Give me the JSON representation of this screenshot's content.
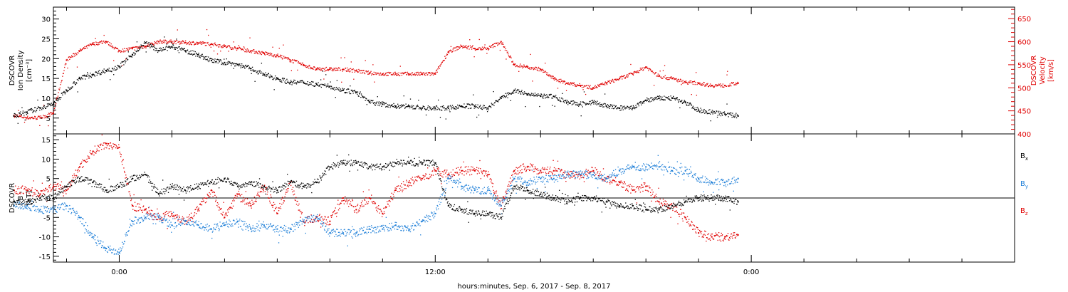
{
  "chart_data": [
    {
      "type": "scatter",
      "panel": "top",
      "left_axis_label": [
        "DSCOVR",
        "Ion Density",
        "[cm⁻³]"
      ],
      "right_axis_label": [
        "DSCOVR",
        "Velocity",
        "[km/s]"
      ],
      "left_ylim": [
        1,
        33
      ],
      "right_ylim": [
        400,
        675
      ],
      "left_ticks": [
        5,
        10,
        15,
        20,
        25,
        30
      ],
      "left_tick_labels": [
        "5",
        "10",
        "15",
        "20",
        "25",
        "30"
      ],
      "right_ticks": [
        400,
        450,
        500,
        550,
        600,
        650
      ],
      "right_tick_labels": [
        "400",
        "450",
        "500",
        "550",
        "600",
        "650"
      ],
      "colors": {
        "density": "#000000",
        "velocity": "#e00000"
      },
      "series": [
        {
          "key": "density",
          "axis": "left",
          "x": [
            -4.0,
            -3.5,
            -3.0,
            -2.5,
            -2.0,
            -1.5,
            -1.0,
            -0.5,
            0.0,
            0.5,
            1.0,
            1.5,
            2.0,
            2.5,
            3.0,
            3.5,
            4.0,
            4.5,
            5.0,
            5.5,
            6.0,
            6.5,
            7.0,
            7.5,
            8.0,
            8.5,
            9.0,
            9.5,
            10.0,
            10.5,
            11.0,
            11.5,
            12.0,
            12.5,
            13.0,
            13.5,
            14.0,
            14.5,
            15.0,
            15.5,
            16.0,
            16.5,
            17.0,
            17.5,
            18.0,
            18.5,
            19.0,
            19.5,
            20.0,
            20.5,
            21.0,
            21.5,
            22.0,
            22.5,
            23.0,
            23.5
          ],
          "y": [
            5.5,
            6.5,
            7.5,
            8.5,
            12,
            15,
            16,
            17,
            18,
            21,
            24,
            22,
            23,
            22,
            21,
            19.5,
            19,
            18.5,
            17.5,
            16,
            15,
            14,
            14,
            13.5,
            13,
            12,
            11.5,
            9,
            8.5,
            8,
            8,
            7.5,
            7.5,
            7.5,
            8,
            8,
            7.5,
            10,
            12,
            11,
            10.5,
            10.5,
            9,
            8.5,
            9,
            8,
            7.5,
            7.5,
            9.5,
            10,
            10,
            9,
            7,
            6.5,
            6,
            5.5
          ]
        },
        {
          "key": "velocity",
          "axis": "right",
          "x": [
            -4.0,
            -3.5,
            -3.0,
            -2.5,
            -2.0,
            -1.5,
            -1.0,
            -0.5,
            0.0,
            0.5,
            1.0,
            1.5,
            2.0,
            2.5,
            3.0,
            3.5,
            4.0,
            4.5,
            5.0,
            5.5,
            6.0,
            6.5,
            7.0,
            7.5,
            8.0,
            8.5,
            9.0,
            9.5,
            10.0,
            10.5,
            11.0,
            11.5,
            12.0,
            12.5,
            13.0,
            13.5,
            14.0,
            14.5,
            15.0,
            15.5,
            16.0,
            16.5,
            17.0,
            17.5,
            18.0,
            18.5,
            19.0,
            19.5,
            20.0,
            20.5,
            21.0,
            21.5,
            22.0,
            22.5,
            23.0,
            23.5
          ],
          "y": [
            440,
            435,
            435,
            445,
            560,
            580,
            595,
            600,
            580,
            585,
            590,
            600,
            600,
            598,
            597,
            595,
            590,
            585,
            580,
            575,
            570,
            560,
            550,
            540,
            540,
            540,
            537,
            532,
            530,
            530,
            530,
            530,
            530,
            578,
            590,
            585,
            585,
            600,
            550,
            545,
            540,
            520,
            510,
            505,
            500,
            510,
            520,
            530,
            545,
            525,
            520,
            512,
            510,
            505,
            505,
            510
          ]
        }
      ]
    },
    {
      "type": "scatter",
      "panel": "bottom",
      "left_axis_label": [
        "DSCOVR",
        "B",
        "[nT]"
      ],
      "ylim": [
        -16.5,
        16.5
      ],
      "ticks": [
        -15,
        -10,
        -5,
        0,
        5,
        10,
        15
      ],
      "tick_labels": [
        "-15",
        "-10",
        "-5",
        "0",
        "5",
        "10",
        "15"
      ],
      "legend": [
        {
          "text": "B",
          "sub": "x"
        },
        {
          "text": "B",
          "sub": "y"
        },
        {
          "text": "B",
          "sub": "z"
        }
      ],
      "colors": {
        "bx": "#000000",
        "by": "#1e7fd8",
        "bz": "#e00000"
      },
      "series": [
        {
          "key": "bx",
          "x": [
            -4.0,
            -3.5,
            -3.0,
            -2.5,
            -2.0,
            -1.5,
            -1.0,
            -0.5,
            0.0,
            0.5,
            1.0,
            1.5,
            2.0,
            2.5,
            3.0,
            3.5,
            4.0,
            4.5,
            5.0,
            5.5,
            6.0,
            6.5,
            7.0,
            7.5,
            8.0,
            8.5,
            9.0,
            9.5,
            10.0,
            10.5,
            11.0,
            11.5,
            12.0,
            12.5,
            13.0,
            13.5,
            14.0,
            14.5,
            15.0,
            15.5,
            16.0,
            16.5,
            17.0,
            17.5,
            18.0,
            18.5,
            19.0,
            19.5,
            20.0,
            20.5,
            21.0,
            21.5,
            22.0,
            22.5,
            23.0,
            23.5
          ],
          "y": [
            -1,
            -1,
            0,
            0,
            3,
            5,
            4,
            2,
            3,
            5,
            6,
            1,
            3,
            2,
            3,
            4,
            5,
            3,
            4,
            3,
            2,
            4,
            3,
            4,
            8,
            9,
            9,
            8,
            8,
            9,
            9,
            9,
            9,
            -2,
            -3,
            -4,
            -4,
            -5,
            3,
            2,
            1,
            0,
            -1,
            0,
            0,
            -1,
            -2,
            -2,
            -3,
            -3,
            -2,
            -1,
            0,
            0,
            0,
            -1
          ]
        },
        {
          "key": "by",
          "x": [
            -4.0,
            -3.5,
            -3.0,
            -2.5,
            -2.0,
            -1.5,
            -1.0,
            -0.5,
            0.0,
            0.5,
            1.0,
            1.5,
            2.0,
            2.5,
            3.0,
            3.5,
            4.0,
            4.5,
            5.0,
            5.5,
            6.0,
            6.5,
            7.0,
            7.5,
            8.0,
            8.5,
            9.0,
            9.5,
            10.0,
            10.5,
            11.0,
            11.5,
            12.0,
            12.5,
            13.0,
            13.5,
            14.0,
            14.5,
            15.0,
            15.5,
            16.0,
            16.5,
            17.0,
            17.5,
            18.0,
            18.5,
            19.0,
            19.5,
            20.0,
            20.5,
            21.0,
            21.5,
            22.0,
            22.5,
            23.0,
            23.5
          ],
          "y": [
            -2,
            -2,
            -3,
            -3,
            -2,
            -5,
            -10,
            -13,
            -14,
            -6,
            -5,
            -5,
            -7,
            -6,
            -7,
            -8,
            -7,
            -6,
            -8,
            -7,
            -8,
            -8,
            -6,
            -5,
            -9,
            -9,
            -9,
            -8,
            -8,
            -7,
            -8,
            -6,
            -4,
            5,
            3,
            2,
            2,
            -2,
            5,
            4,
            5,
            5,
            6,
            6,
            6,
            5,
            7,
            8,
            8,
            8,
            7,
            7,
            5,
            4,
            4,
            5
          ]
        },
        {
          "key": "bz",
          "x": [
            -4.0,
            -3.5,
            -3.0,
            -2.5,
            -2.0,
            -1.5,
            -1.0,
            -0.5,
            0.0,
            0.5,
            1.0,
            1.5,
            2.0,
            2.5,
            3.0,
            3.5,
            4.0,
            4.5,
            5.0,
            5.5,
            6.0,
            6.5,
            7.0,
            7.5,
            8.0,
            8.5,
            9.0,
            9.5,
            10.0,
            10.5,
            11.0,
            11.5,
            12.0,
            12.5,
            13.0,
            13.5,
            14.0,
            14.5,
            15.0,
            15.5,
            16.0,
            16.5,
            17.0,
            17.5,
            18.0,
            18.5,
            19.0,
            19.5,
            20.0,
            20.5,
            21.0,
            21.5,
            22.0,
            22.5,
            23.0,
            23.5
          ],
          "y": [
            2,
            2,
            1,
            3,
            2,
            8,
            12,
            14,
            13,
            -2,
            -3,
            -5,
            -4,
            -6,
            -3,
            2,
            -5,
            1,
            -2,
            3,
            -4,
            4,
            -6,
            -5,
            -6,
            0,
            -3,
            0,
            -4,
            2,
            4,
            5,
            7,
            6,
            7,
            7,
            6,
            -2,
            7,
            8,
            7,
            7,
            6,
            6,
            7,
            5,
            4,
            2,
            3,
            -1,
            -2,
            -5,
            -9,
            -10,
            -10,
            -9.5
          ]
        }
      ]
    }
  ],
  "x_axis": {
    "title": "hours:minutes, Sep.  6, 2017 - Sep.  8, 2017",
    "xlim": [
      -2.5,
      34
    ],
    "major_ticks": [
      0,
      12,
      24
    ],
    "major_labels": [
      "0:00",
      "12:00",
      "0:00"
    ],
    "minor_tick_step": 2
  }
}
